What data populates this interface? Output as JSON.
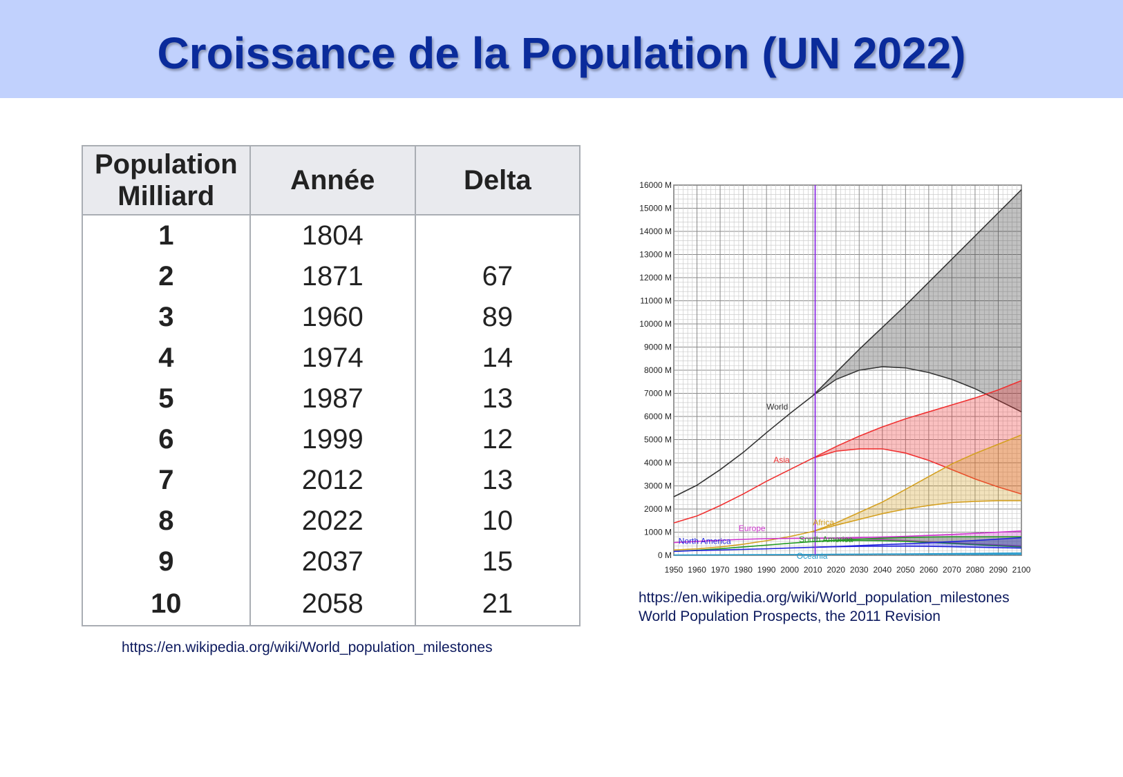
{
  "title": "Croissance de la Population (UN 2022)",
  "table": {
    "headers": [
      "Population\nMilliard",
      "Année",
      "Delta"
    ],
    "rows": [
      [
        "1",
        "1804",
        ""
      ],
      [
        "2",
        "1871",
        "67"
      ],
      [
        "3",
        "1960",
        "89"
      ],
      [
        "4",
        "1974",
        "14"
      ],
      [
        "5",
        "1987",
        "13"
      ],
      [
        "6",
        "1999",
        "12"
      ],
      [
        "7",
        "2012",
        "13"
      ],
      [
        "8",
        "2022",
        "10"
      ],
      [
        "9",
        "2037",
        "15"
      ],
      [
        "10",
        "2058",
        "21"
      ]
    ],
    "source": "https://en.wikipedia.org/wiki/World_population_milestones"
  },
  "chart_source": [
    "https://en.wikipedia.org/wiki/World_population_milestones",
    "World Population Prospects, the 2011 Revision"
  ],
  "chart_data": {
    "type": "area",
    "xlim": [
      1950,
      2100
    ],
    "ylim": [
      0,
      16000
    ],
    "grid": true,
    "x_ticks": [
      1950,
      1960,
      1970,
      1980,
      1990,
      2000,
      2010,
      2020,
      2030,
      2040,
      2050,
      2060,
      2070,
      2080,
      2090,
      2100
    ],
    "y_ticks": [
      "0 M",
      "1000 M",
      "2000 M",
      "3000 M",
      "4000 M",
      "5000 M",
      "6000 M",
      "7000 M",
      "8000 M",
      "9000 M",
      "10000 M",
      "11000 M",
      "12000 M",
      "13000 M",
      "14000 M",
      "15000 M",
      "16000 M"
    ],
    "marker_year": 2011,
    "marker_color": "#8a2be2",
    "hist_x": [
      1950,
      1960,
      1970,
      1980,
      1990,
      2000,
      2010
    ],
    "proj_x": [
      2010,
      2020,
      2030,
      2040,
      2050,
      2060,
      2070,
      2080,
      2090,
      2100
    ],
    "series": [
      {
        "name": "World",
        "color": "#333333",
        "hist": [
          2530,
          3030,
          3700,
          4450,
          5300,
          6120,
          6900
        ],
        "high": [
          6900,
          7900,
          8900,
          9850,
          10800,
          11800,
          12800,
          13800,
          14800,
          15800
        ],
        "low": [
          6900,
          7600,
          8000,
          8150,
          8100,
          7900,
          7600,
          7200,
          6700,
          6200
        ]
      },
      {
        "name": "Asia",
        "color": "#f03030",
        "hist": [
          1400,
          1700,
          2150,
          2650,
          3200,
          3700,
          4200
        ],
        "high": [
          4200,
          4700,
          5150,
          5550,
          5900,
          6200,
          6500,
          6800,
          7150,
          7550
        ],
        "low": [
          4200,
          4500,
          4600,
          4600,
          4420,
          4100,
          3700,
          3300,
          2950,
          2650
        ]
      },
      {
        "name": "Africa",
        "color": "#d4a020",
        "hist": [
          230,
          280,
          360,
          480,
          630,
          810,
          1030
        ],
        "high": [
          1030,
          1400,
          1850,
          2300,
          2850,
          3400,
          3950,
          4400,
          4800,
          5200
        ],
        "low": [
          1030,
          1300,
          1550,
          1800,
          2000,
          2150,
          2280,
          2330,
          2360,
          2360
        ]
      },
      {
        "name": "Europe",
        "color": "#cc33cc",
        "hist": [
          550,
          600,
          650,
          690,
          720,
          730,
          740
        ],
        "high": [
          740,
          750,
          770,
          790,
          820,
          860,
          900,
          950,
          1000,
          1050
        ],
        "low": [
          740,
          730,
          710,
          680,
          640,
          590,
          540,
          490,
          450,
          410
        ]
      },
      {
        "name": "South America",
        "color": "#229922",
        "hist": [
          170,
          220,
          285,
          360,
          440,
          520,
          590
        ],
        "high": [
          590,
          650,
          700,
          740,
          770,
          790,
          800,
          800,
          800,
          800
        ],
        "low": [
          590,
          630,
          640,
          630,
          600,
          560,
          510,
          460,
          410,
          360
        ]
      },
      {
        "name": "North America",
        "color": "#2222dd",
        "hist": [
          170,
          205,
          230,
          255,
          280,
          315,
          345
        ],
        "high": [
          345,
          380,
          420,
          460,
          500,
          540,
          590,
          640,
          700,
          760
        ],
        "low": [
          345,
          370,
          385,
          395,
          395,
          385,
          370,
          350,
          330,
          310
        ]
      },
      {
        "name": "Oceania",
        "color": "#2299cc",
        "hist": [
          13,
          16,
          20,
          23,
          27,
          31,
          37
        ],
        "high": [
          37,
          42,
          48,
          54,
          60,
          67,
          74,
          82,
          90,
          100
        ],
        "low": [
          37,
          40,
          43,
          45,
          46,
          46,
          45,
          44,
          43,
          42
        ]
      }
    ]
  }
}
